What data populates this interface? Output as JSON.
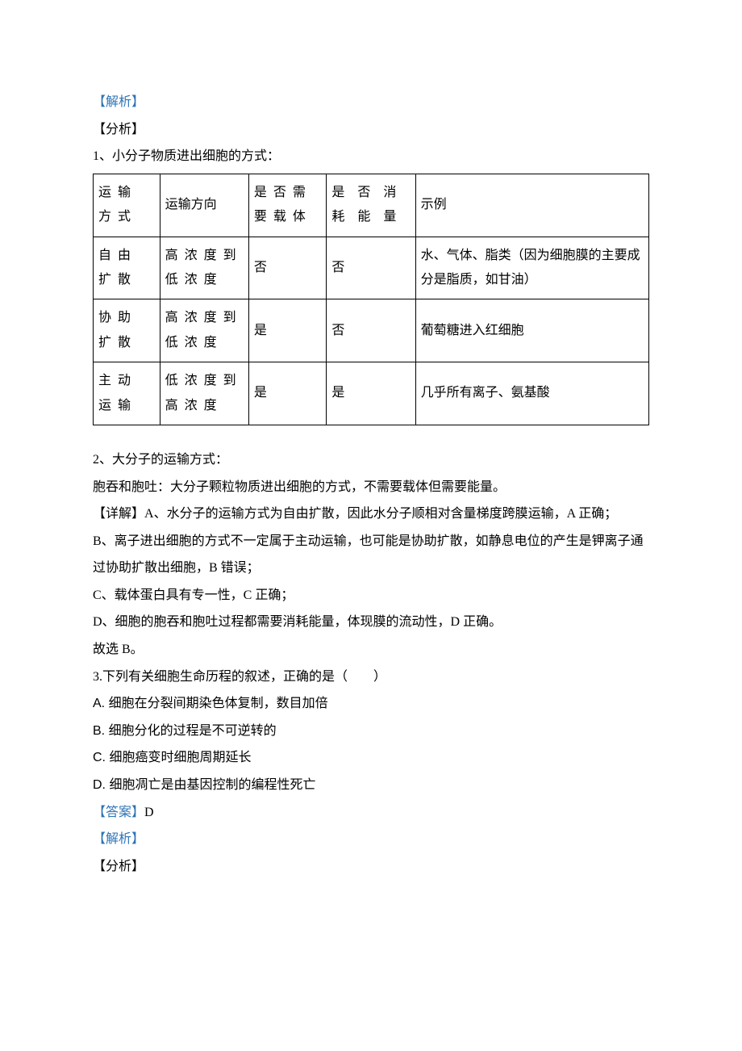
{
  "headings": {
    "analysis": "【解析】",
    "fenxi": "【分析】",
    "intro1": "1、小分子物质进出细胞的方式：",
    "intro2": "2、大分子的运输方式：",
    "detail_head": "【详解】",
    "answer_head": "【答案】"
  },
  "table": {
    "col_widths": [
      "12%",
      "16%",
      "14%",
      "16%",
      "42%"
    ],
    "header": [
      "运输方式",
      "运输方向",
      "是否需要载体",
      "是否消耗能量",
      "示例"
    ],
    "rows": [
      [
        "自由扩散",
        "高浓度到低浓度",
        "否",
        "否",
        "水、气体、脂类（因为细胞膜的主要成分是脂质，如甘油）"
      ],
      [
        "协助扩散",
        "高浓度到低浓度",
        "是",
        "否",
        "葡萄糖进入红细胞"
      ],
      [
        "主动运输",
        "低浓度到高浓度",
        "是",
        "是",
        "几乎所有离子、氨基酸"
      ]
    ]
  },
  "para": {
    "big": "胞吞和胞吐：大分子颗粒物质进出细胞的方式，不需要载体但需要能量。",
    "A": "A、水分子的运输方式为自由扩散，因此水分子顺相对含量梯度跨膜运输，A 正确；",
    "B": "B、离子进出细胞的方式不一定属于主动运输，也可能是协助扩散，如静息电位的产生是钾离子通过协助扩散出细胞，B 错误；",
    "C": "C、载体蛋白具有专一性，C 正确；",
    "D": "D、细胞的胞吞和胞吐过程都需要消耗能量，体现膜的流动性，D 正确。",
    "pick": "故选 B。"
  },
  "q3": {
    "stem": "3.下列有关细胞生命历程的叙述，正确的是（　　）",
    "A": "A.  细胞在分裂间期染色体复制，数目加倍",
    "B": "B.  细胞分化的过程是不可逆转的",
    "C": "C.  细胞癌变时细胞周期延长",
    "D": "D.  细胞凋亡是由基因控制的编程性死亡",
    "answer": "D"
  }
}
